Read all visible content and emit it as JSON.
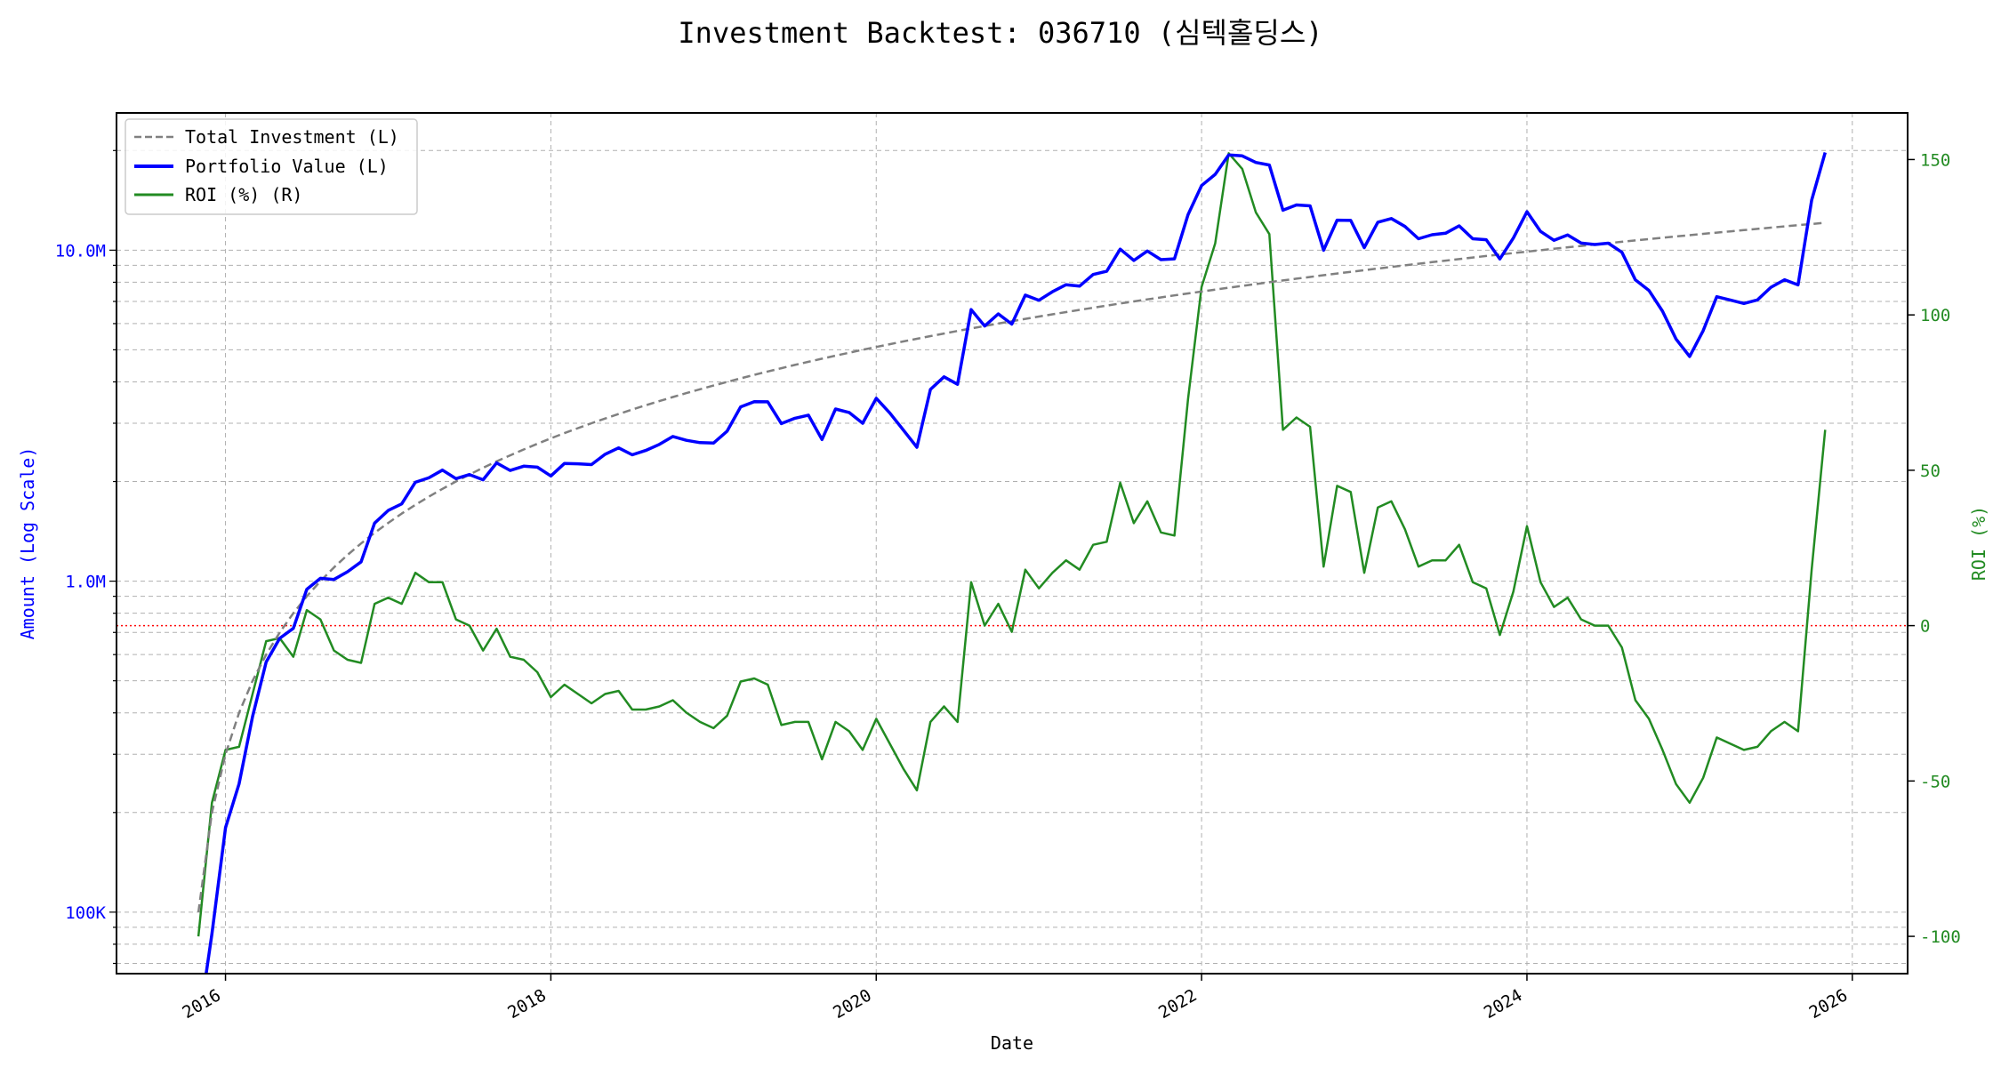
{
  "chart_data": {
    "type": "line",
    "title": "Investment Backtest: 036710 (심텍홀딩스)",
    "xlabel": "Date",
    "ylabel_left": "Amount (Log Scale)",
    "ylabel_right": "ROI (%)",
    "x_start": "2015-11",
    "x_frequency": "monthly",
    "x_tick_labels": [
      "2016",
      "2018",
      "2020",
      "2022",
      "2024",
      "2026"
    ],
    "x_tick_years": [
      2016,
      2018,
      2020,
      2022,
      2024,
      2026
    ],
    "xlim_years": [
      2015.33,
      2026.34
    ],
    "left_scale": "log",
    "left_ylim": [
      65200,
      25980000
    ],
    "left_ticks": [
      {
        "value": 100000,
        "label": "100K"
      },
      {
        "value": 1000000,
        "label": "1.0M"
      },
      {
        "value": 10000000,
        "label": "10.0M"
      }
    ],
    "right_ylim": [
      -112,
      165
    ],
    "right_ticks": [
      {
        "value": -100,
        "label": "-100"
      },
      {
        "value": -50,
        "label": "-50"
      },
      {
        "value": 0,
        "label": "0"
      },
      {
        "value": 50,
        "label": "50"
      },
      {
        "value": 100,
        "label": "100"
      },
      {
        "value": 150,
        "label": "150"
      }
    ],
    "reference_line": {
      "axis": "right",
      "value": 0,
      "color": "#ff0000"
    },
    "grid": true,
    "legend_position": "top-left",
    "series": [
      {
        "name": "Total Investment (L)",
        "axis": "left",
        "color": "#808080",
        "style": "dashed",
        "unit": "millions",
        "values": [
          0.1,
          0.2,
          0.3,
          0.4,
          0.5,
          0.6,
          0.7,
          0.8,
          0.9,
          1.0,
          1.1,
          1.2,
          1.3,
          1.4,
          1.5,
          1.6,
          1.7,
          1.8,
          1.9,
          2.0,
          2.1,
          2.2,
          2.3,
          2.4,
          2.5,
          2.6,
          2.7,
          2.8,
          2.9,
          3.0,
          3.1,
          3.2,
          3.3,
          3.4,
          3.5,
          3.6,
          3.7,
          3.8,
          3.9,
          4.0,
          4.1,
          4.2,
          4.3,
          4.4,
          4.5,
          4.6,
          4.7,
          4.8,
          4.9,
          5.0,
          5.1,
          5.2,
          5.3,
          5.4,
          5.5,
          5.6,
          5.7,
          5.8,
          5.9,
          6.0,
          6.1,
          6.2,
          6.3,
          6.4,
          6.5,
          6.6,
          6.7,
          6.8,
          6.9,
          7.0,
          7.1,
          7.2,
          7.3,
          7.4,
          7.5,
          7.6,
          7.7,
          7.8,
          7.9,
          8.0,
          8.1,
          8.2,
          8.3,
          8.4,
          8.5,
          8.6,
          8.7,
          8.8,
          8.9,
          9.0,
          9.1,
          9.2,
          9.3,
          9.4,
          9.5,
          9.6,
          9.7,
          9.8,
          9.9,
          10.0,
          10.1,
          10.2,
          10.3,
          10.4,
          10.5,
          10.6,
          10.7,
          10.8,
          10.9,
          11.0,
          11.1,
          11.2,
          11.3,
          11.4,
          11.5,
          11.6,
          11.7,
          11.8,
          11.9,
          12.0,
          12.1
        ]
      },
      {
        "name": "Portfolio Value (L)",
        "axis": "left",
        "color": "#0000ff",
        "style": "solid",
        "unit": "millions",
        "values": [
          0.0,
          0.086,
          0.18,
          0.244,
          0.39,
          0.57,
          0.672,
          0.72,
          0.945,
          1.02,
          1.012,
          1.068,
          1.144,
          1.498,
          1.635,
          1.712,
          1.989,
          2.052,
          2.166,
          2.04,
          2.1,
          2.024,
          2.277,
          2.16,
          2.225,
          2.21,
          2.079,
          2.268,
          2.262,
          2.25,
          2.418,
          2.528,
          2.409,
          2.482,
          2.59,
          2.736,
          2.664,
          2.622,
          2.613,
          2.84,
          3.362,
          3.486,
          3.483,
          2.992,
          3.105,
          3.174,
          2.679,
          3.312,
          3.234,
          3.0,
          3.57,
          3.224,
          2.862,
          2.538,
          3.795,
          4.144,
          3.933,
          6.612,
          5.9,
          6.42,
          5.978,
          7.316,
          7.056,
          7.488,
          7.865,
          7.788,
          8.442,
          8.636,
          10.074,
          9.31,
          9.94,
          9.36,
          9.417,
          12.802,
          15.675,
          16.948,
          19.404,
          19.266,
          18.407,
          18.08,
          13.203,
          13.694,
          13.612,
          9.996,
          12.325,
          12.298,
          10.179,
          12.144,
          12.46,
          11.79,
          10.829,
          11.132,
          11.253,
          11.844,
          10.83,
          10.752,
          9.409,
          10.878,
          13.068,
          11.4,
          10.706,
          11.118,
          10.506,
          10.4,
          10.5,
          9.858,
          8.132,
          7.56,
          6.54,
          5.39,
          4.773,
          5.712,
          7.232,
          7.068,
          6.9,
          7.076,
          7.722,
          8.142,
          7.854,
          14.16,
          19.723
        ]
      },
      {
        "name": "ROI (%) (R)",
        "axis": "right",
        "color": "#228b22",
        "style": "solid",
        "unit": "percent",
        "values": [
          -100,
          -57,
          -40,
          -39,
          -22,
          -5,
          -4,
          -10,
          5,
          2,
          -8,
          -11,
          -12,
          7,
          9,
          7,
          17,
          14,
          14,
          2,
          0,
          -8,
          -1,
          -10,
          -11,
          -15,
          -23,
          -19,
          -22,
          -25,
          -22,
          -21,
          -27,
          -27,
          -26,
          -24,
          -28,
          -31,
          -33,
          -29,
          -18,
          -17,
          -19,
          -32,
          -31,
          -31,
          -43,
          -31,
          -34,
          -40,
          -30,
          -38,
          -46,
          -53,
          -31,
          -26,
          -31,
          14,
          0,
          7,
          -2,
          18,
          12,
          17,
          21,
          18,
          26,
          27,
          46,
          33,
          40,
          30,
          29,
          73,
          109,
          123,
          152,
          147,
          133,
          126,
          63,
          67,
          64,
          19,
          45,
          43,
          17,
          38,
          40,
          31,
          19,
          21,
          21,
          26,
          14,
          12,
          -3,
          11,
          32,
          14,
          6,
          9,
          2,
          0,
          0,
          -7,
          -24,
          -30,
          -40,
          -51,
          -57,
          -49,
          -36,
          -38,
          -40,
          -39,
          -34,
          -31,
          -34,
          18,
          63
        ]
      }
    ]
  }
}
